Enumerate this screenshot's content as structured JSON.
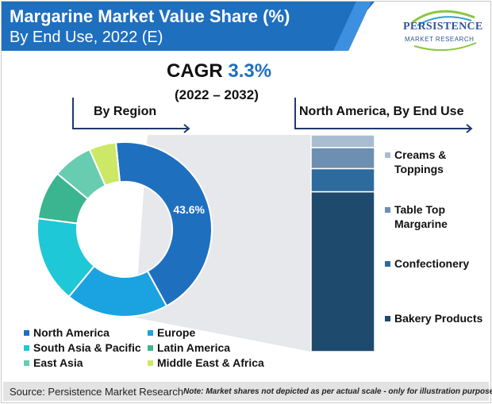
{
  "header": {
    "title_line1": "Margarine Market Value Share (%)",
    "title_line2": "By End Use, 2022 (E)",
    "colors": {
      "banner": "#1f6fbf"
    }
  },
  "logo": {
    "line1": "PERSISTENCE",
    "line2": "MARKET RESEARCH"
  },
  "cagr": {
    "label": "CAGR",
    "value": "3.3%",
    "period": "(2022 – 2032)"
  },
  "subtitles": {
    "left": "By Region",
    "right": "North America, By End Use"
  },
  "chart_data": [
    {
      "type": "pie",
      "title": "By Region",
      "categories": [
        "North America",
        "Europe",
        "South Asia & Pacific",
        "Latin America",
        "East Asia",
        "Middle East & Africa"
      ],
      "values": [
        43.6,
        19,
        16,
        9,
        7.4,
        5
      ],
      "colors": [
        "#1f6fbf",
        "#1aa3e0",
        "#1ec8d6",
        "#3bb58f",
        "#67ccb0",
        "#cde866"
      ],
      "data_labels": [
        "43.6%",
        "",
        "",
        "",
        "",
        ""
      ],
      "legend_placement": "bottom"
    },
    {
      "type": "bar",
      "stacked": true,
      "title": "North America, By End Use",
      "categories": [
        "Bakery Products",
        "Confectionery",
        "Table Top Margarine",
        "Creams & Toppings"
      ],
      "values": [
        76,
        11,
        10,
        6
      ],
      "colors": [
        "#1e4a6e",
        "#2d6a9e",
        "#6d8fb2",
        "#a9bdd2"
      ],
      "legend_placement": "right"
    }
  ],
  "footer": {
    "source": "Source: Persistence Market Research",
    "note": "Note: Market shares not depicted as per actual scale - only for illustration purposes"
  }
}
